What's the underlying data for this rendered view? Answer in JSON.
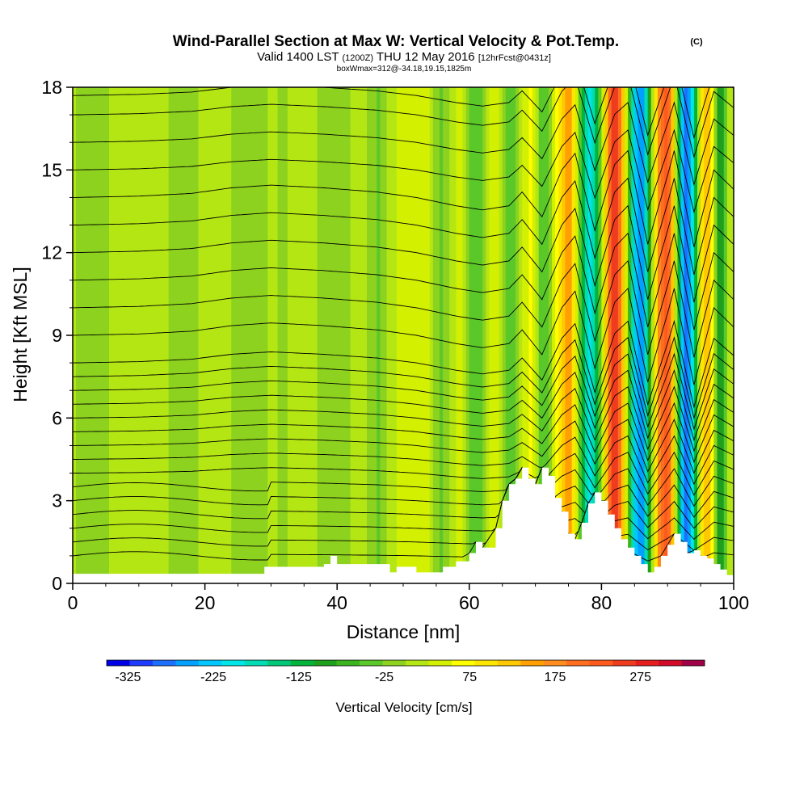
{
  "chart_data": {
    "type": "heatmap",
    "title": "Wind-Parallel Section at Max W: Vertical Velocity & Pot.Temp.",
    "title_mark": "(C)",
    "subtitle_valid": "Valid 1400 LST",
    "subtitle_utc": "(1200Z)",
    "subtitle_date": "THU 12 May 2016",
    "subtitle_fcst": "[12hrFcst@0431z]",
    "info_line": "boxWmax=312@-34.18,19.15,1825m",
    "xlabel": "Distance [nm]",
    "ylabel": "Height [Kft MSL]",
    "xlim": [
      0,
      100
    ],
    "ylim": [
      0,
      18
    ],
    "x_ticks": [
      "0",
      "20",
      "40",
      "60",
      "80",
      "100"
    ],
    "y_ticks": [
      "0",
      "3",
      "6",
      "9",
      "12",
      "15",
      "18"
    ],
    "colorbar_label": "Vertical Velocity [cm/s]",
    "colorbar_ticks": [
      "-325",
      "-225",
      "-125",
      "-25",
      "75",
      "175",
      "275"
    ],
    "colorbar_range": [
      -350,
      350
    ],
    "colorbar_colors": [
      "#0000e6",
      "#1e3cff",
      "#1e6eff",
      "#00a0ff",
      "#00c8ff",
      "#00e6e6",
      "#00dcb4",
      "#00c878",
      "#00b43c",
      "#1ea01e",
      "#3cb41e",
      "#5ac828",
      "#8cd21e",
      "#b4e614",
      "#d2f000",
      "#ffff00",
      "#ffe600",
      "#ffc800",
      "#ffa000",
      "#ff8c1e",
      "#ff6e1e",
      "#ff5a1e",
      "#f03c1e",
      "#e61e1e",
      "#d20a28",
      "#a00046"
    ],
    "vertical_velocity_columns": [
      {
        "x": 0,
        "w": 5
      },
      {
        "x": 2,
        "w": -20
      },
      {
        "x": 4,
        "w": -10
      },
      {
        "x": 6,
        "w": 5
      },
      {
        "x": 8,
        "w": 10
      },
      {
        "x": 10,
        "w": 0
      },
      {
        "x": 12,
        "w": 15
      },
      {
        "x": 14,
        "w": 5
      },
      {
        "x": 16,
        "w": -10
      },
      {
        "x": 18,
        "w": -5
      },
      {
        "x": 20,
        "w": 5
      },
      {
        "x": 22,
        "w": 10
      },
      {
        "x": 24,
        "w": 0
      },
      {
        "x": 26,
        "w": -25
      },
      {
        "x": 28,
        "w": -10
      },
      {
        "x": 30,
        "w": 5
      },
      {
        "x": 32,
        "w": -5
      },
      {
        "x": 34,
        "w": 10
      },
      {
        "x": 35,
        "w": 25
      },
      {
        "x": 36,
        "w": 15
      },
      {
        "x": 38,
        "w": -10
      },
      {
        "x": 40,
        "w": -25
      },
      {
        "x": 42,
        "w": 0
      },
      {
        "x": 43,
        "w": 30
      },
      {
        "x": 44,
        "w": 15
      },
      {
        "x": 45,
        "w": -10
      },
      {
        "x": 46,
        "w": -30
      },
      {
        "x": 47,
        "w": -20
      },
      {
        "x": 48,
        "w": 15
      },
      {
        "x": 50,
        "w": 45
      },
      {
        "x": 52,
        "w": 55
      },
      {
        "x": 54,
        "w": 30
      },
      {
        "x": 55,
        "w": -20
      },
      {
        "x": 56,
        "w": -30
      },
      {
        "x": 57,
        "w": 0
      },
      {
        "x": 58,
        "w": 35
      },
      {
        "x": 59,
        "w": 25
      },
      {
        "x": 60,
        "w": -25
      },
      {
        "x": 61,
        "w": -55
      },
      {
        "x": 62,
        "w": -25
      },
      {
        "x": 63,
        "w": 35
      },
      {
        "x": 64,
        "w": 55
      },
      {
        "x": 65,
        "w": 5
      },
      {
        "x": 66,
        "w": -60
      },
      {
        "x": 67,
        "w": -35
      },
      {
        "x": 68,
        "w": 20
      },
      {
        "x": 69,
        "w": 65
      },
      {
        "x": 70,
        "w": 25
      },
      {
        "x": 71,
        "w": -45
      },
      {
        "x": 72,
        "w": -25
      },
      {
        "x": 73,
        "w": 60
      },
      {
        "x": 74,
        "w": 120
      },
      {
        "x": 75,
        "w": 150
      },
      {
        "x": 76,
        "w": 90
      },
      {
        "x": 77,
        "w": -100
      },
      {
        "x": 78,
        "w": -210
      },
      {
        "x": 79,
        "w": -150
      },
      {
        "x": 80,
        "w": 0
      },
      {
        "x": 81,
        "w": 170
      },
      {
        "x": 82,
        "w": 270
      },
      {
        "x": 83,
        "w": 180
      },
      {
        "x": 84,
        "w": -20
      },
      {
        "x": 85,
        "w": -220
      },
      {
        "x": 86,
        "w": -280
      },
      {
        "x": 87,
        "w": -140
      },
      {
        "x": 88,
        "w": 70
      },
      {
        "x": 89,
        "w": 200
      },
      {
        "x": 90,
        "w": 230
      },
      {
        "x": 91,
        "w": 70
      },
      {
        "x": 92,
        "w": -200
      },
      {
        "x": 93,
        "w": -300
      },
      {
        "x": 94,
        "w": -170
      },
      {
        "x": 95,
        "w": 60
      },
      {
        "x": 96,
        "w": 150
      },
      {
        "x": 97,
        "w": 30
      },
      {
        "x": 98,
        "w": -120
      },
      {
        "x": 99,
        "w": 0
      },
      {
        "x": 100,
        "w": 30
      }
    ],
    "terrain_kft": [
      {
        "x": 0,
        "h": 0.35
      },
      {
        "x": 27,
        "h": 0.35
      },
      {
        "x": 29,
        "h": 0.6
      },
      {
        "x": 31,
        "h": 0.6
      },
      {
        "x": 38,
        "h": 0.7
      },
      {
        "x": 39,
        "h": 1.0
      },
      {
        "x": 40,
        "h": 0.7
      },
      {
        "x": 48,
        "h": 0.4
      },
      {
        "x": 49,
        "h": 0.6
      },
      {
        "x": 52,
        "h": 0.4
      },
      {
        "x": 56,
        "h": 0.6
      },
      {
        "x": 58,
        "h": 0.8
      },
      {
        "x": 60,
        "h": 1.1
      },
      {
        "x": 61,
        "h": 1.5
      },
      {
        "x": 62,
        "h": 1.3
      },
      {
        "x": 64,
        "h": 2.0
      },
      {
        "x": 65,
        "h": 3.0
      },
      {
        "x": 66,
        "h": 3.6
      },
      {
        "x": 67,
        "h": 3.8
      },
      {
        "x": 68,
        "h": 4.2
      },
      {
        "x": 69,
        "h": 3.8
      },
      {
        "x": 70,
        "h": 3.6
      },
      {
        "x": 71,
        "h": 4.2
      },
      {
        "x": 72,
        "h": 3.9
      },
      {
        "x": 73,
        "h": 3.1
      },
      {
        "x": 74,
        "h": 2.6
      },
      {
        "x": 75,
        "h": 1.8
      },
      {
        "x": 76,
        "h": 1.6
      },
      {
        "x": 77,
        "h": 2.2
      },
      {
        "x": 78,
        "h": 2.9
      },
      {
        "x": 79,
        "h": 3.3
      },
      {
        "x": 80,
        "h": 3.0
      },
      {
        "x": 81,
        "h": 2.5
      },
      {
        "x": 82,
        "h": 2.0
      },
      {
        "x": 83,
        "h": 1.6
      },
      {
        "x": 84,
        "h": 1.3
      },
      {
        "x": 85,
        "h": 1.0
      },
      {
        "x": 86,
        "h": 0.7
      },
      {
        "x": 87,
        "h": 0.4
      },
      {
        "x": 88,
        "h": 0.6
      },
      {
        "x": 89,
        "h": 1.0
      },
      {
        "x": 90,
        "h": 1.4
      },
      {
        "x": 91,
        "h": 1.8
      },
      {
        "x": 92,
        "h": 1.5
      },
      {
        "x": 93,
        "h": 1.1
      },
      {
        "x": 94,
        "h": 1.2
      },
      {
        "x": 95,
        "h": 1.0
      },
      {
        "x": 96,
        "h": 0.9
      },
      {
        "x": 97,
        "h": 0.7
      },
      {
        "x": 98,
        "h": 0.5
      },
      {
        "x": 99,
        "h": 0.3
      },
      {
        "x": 100,
        "h": 0.2
      }
    ],
    "isentrope_levels_kft": [
      1.0,
      1.5,
      2.0,
      2.5,
      3.0,
      3.5,
      4.0,
      4.5,
      5.0,
      5.5,
      6.0,
      6.5,
      7.0,
      7.5,
      8.0,
      9.0,
      10.0,
      11.0,
      12.0,
      13.0,
      14.0,
      15.0,
      16.0,
      17.0,
      17.7
    ],
    "isentrope_wave": [
      {
        "x": 0,
        "dz": 0.0
      },
      {
        "x": 10,
        "dz": 0.05
      },
      {
        "x": 18,
        "dz": 0.15
      },
      {
        "x": 24,
        "dz": 0.35
      },
      {
        "x": 30,
        "dz": 0.45
      },
      {
        "x": 38,
        "dz": 0.35
      },
      {
        "x": 46,
        "dz": 0.2
      },
      {
        "x": 52,
        "dz": 0.0
      },
      {
        "x": 58,
        "dz": -0.3
      },
      {
        "x": 62,
        "dz": -0.45
      },
      {
        "x": 66,
        "dz": -0.3
      },
      {
        "x": 68,
        "dz": 0.2
      },
      {
        "x": 71,
        "dz": -0.7
      },
      {
        "x": 74,
        "dz": 1.0
      },
      {
        "x": 76,
        "dz": 1.6
      },
      {
        "x": 79,
        "dz": -1.2
      },
      {
        "x": 82,
        "dz": 1.2
      },
      {
        "x": 84,
        "dz": 1.7
      },
      {
        "x": 87,
        "dz": -1.7
      },
      {
        "x": 90,
        "dz": 0.8
      },
      {
        "x": 91,
        "dz": 1.7
      },
      {
        "x": 94,
        "dz": -1.8
      },
      {
        "x": 97,
        "dz": 1.0
      },
      {
        "x": 100,
        "dz": 0.3
      }
    ]
  }
}
